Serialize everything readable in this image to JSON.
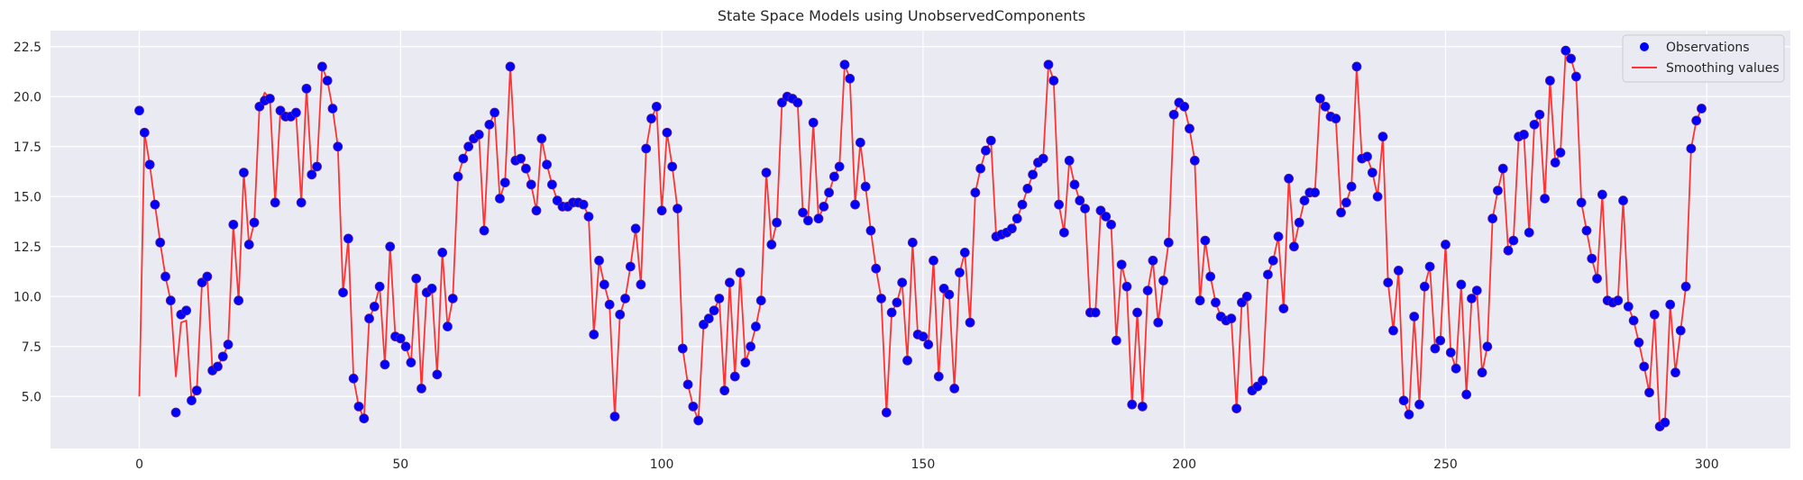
{
  "chart_data": {
    "type": "scatter",
    "title": "State Space Models using UnobservedComponents",
    "xlabel": "",
    "ylabel": "",
    "xlim": [
      -17,
      316
    ],
    "ylim": [
      2.4,
      23.3
    ],
    "xticks": [
      0,
      50,
      100,
      150,
      200,
      250,
      300
    ],
    "xtick_labels": [
      "0",
      "50",
      "100",
      "150",
      "200",
      "250",
      "300"
    ],
    "yticks": [
      5.0,
      7.5,
      10.0,
      12.5,
      15.0,
      17.5,
      20.0,
      22.5
    ],
    "ytick_labels": [
      "5.0",
      "7.5",
      "10.0",
      "12.5",
      "15.0",
      "17.5",
      "20.0",
      "22.5"
    ],
    "grid": true,
    "legend_position": "top-right",
    "colors": {
      "background": "#EAEAF2",
      "grid": "#FFFFFF",
      "observations": "#0000FF",
      "observations_edge": "#5A1E8C",
      "smoothing": "#FF3333",
      "text": "#262626"
    },
    "legend": [
      {
        "label": "Observations",
        "marker": "dot",
        "color": "#0000FF"
      },
      {
        "label": "Smoothing values",
        "marker": "line",
        "color": "#FF3333"
      }
    ],
    "series": [
      {
        "name": "Observations",
        "kind": "scatter",
        "x_start": 0,
        "values": [
          19.3,
          18.2,
          16.6,
          14.6,
          12.7,
          11.0,
          9.8,
          4.2,
          9.1,
          9.3,
          4.8,
          5.3,
          10.7,
          11.0,
          6.3,
          6.5,
          7.0,
          7.6,
          13.6,
          9.8,
          16.2,
          12.6,
          13.7,
          19.5,
          19.8,
          19.9,
          14.7,
          19.3,
          19.0,
          19.0,
          19.2,
          14.7,
          20.4,
          16.1,
          16.5,
          21.5,
          20.8,
          19.4,
          17.5,
          10.2,
          12.9,
          5.9,
          4.5,
          3.9,
          8.9,
          9.5,
          10.5,
          6.6,
          12.5,
          8.0,
          7.9,
          7.5,
          6.7,
          10.9,
          5.4,
          10.2,
          10.4,
          6.1,
          12.2,
          8.5,
          9.9,
          16.0,
          16.9,
          17.5,
          17.9,
          18.1,
          13.3,
          18.6,
          19.2,
          14.9,
          15.7,
          21.5,
          16.8,
          16.9,
          16.4,
          15.6,
          14.3,
          17.9,
          16.6,
          15.6,
          14.8,
          14.5,
          14.5,
          14.7,
          14.7,
          14.6,
          14.0,
          8.1,
          11.8,
          10.6,
          9.6,
          4.0,
          9.1,
          9.9,
          11.5,
          13.4,
          10.6,
          17.4,
          18.9,
          19.5,
          14.3,
          18.2,
          16.5,
          14.4,
          7.4,
          5.6,
          4.5,
          3.8,
          8.6,
          8.9,
          9.3,
          9.9,
          5.3,
          10.7,
          6.0,
          11.2,
          6.7,
          7.5,
          8.5,
          9.8,
          16.2,
          12.6,
          13.7,
          19.7,
          20.0,
          19.9,
          19.7,
          14.2,
          13.8,
          18.7,
          13.9,
          14.5,
          15.2,
          16.0,
          16.5,
          21.6,
          20.9,
          14.6,
          17.7,
          15.5,
          13.3,
          11.4,
          9.9,
          4.2,
          9.2,
          9.7,
          10.7,
          6.8,
          12.7,
          8.1,
          8.0,
          7.6,
          11.8,
          6.0,
          10.4,
          10.1,
          5.4,
          11.2,
          12.2,
          8.7,
          15.2,
          16.4,
          17.3,
          17.8,
          13.0,
          13.1,
          13.2,
          13.4,
          13.9,
          14.6,
          15.4,
          16.1,
          16.7,
          16.9,
          21.6,
          20.8,
          14.6,
          13.2,
          16.8,
          15.6,
          14.8,
          14.4,
          9.2,
          9.2,
          14.3,
          14.0,
          13.6,
          7.8,
          11.6,
          10.5,
          4.6,
          9.2,
          4.5,
          10.3,
          11.8,
          8.7,
          10.8,
          12.7,
          19.1,
          19.7,
          19.5,
          18.4,
          16.8,
          9.8,
          12.8,
          11.0,
          9.7,
          9.0,
          8.8,
          8.9,
          4.4,
          9.7,
          10.0,
          5.3,
          5.5,
          5.8,
          11.1,
          11.8,
          13.0,
          9.4,
          15.9,
          12.5,
          13.7,
          14.8,
          15.2,
          15.2,
          19.9,
          19.5,
          19.0,
          18.9,
          14.2,
          14.7,
          15.5,
          21.5,
          16.9,
          17.0,
          16.2,
          15.0,
          18.0,
          10.7,
          8.3,
          11.3,
          4.8,
          4.1,
          9.0,
          4.6,
          10.5,
          11.5,
          7.4,
          7.8,
          12.6,
          7.2,
          6.4,
          10.6,
          5.1,
          9.9,
          10.3,
          6.2,
          7.5,
          13.9,
          15.3,
          16.4,
          12.3,
          12.8,
          18.0,
          18.1,
          13.2,
          18.6,
          19.1,
          14.9,
          20.8,
          16.7,
          17.2,
          22.3,
          21.9,
          21.0,
          14.7,
          13.3,
          11.9,
          10.9,
          15.1,
          9.8,
          9.7,
          9.8,
          14.8,
          9.5,
          8.8,
          7.7,
          6.5,
          5.2,
          9.1,
          3.5,
          3.7,
          9.6,
          6.2,
          8.3,
          10.5,
          17.4,
          18.8,
          19.4
        ]
      },
      {
        "name": "Smoothing values",
        "kind": "line",
        "x_start": 0,
        "overrides": [
          {
            "x": 0,
            "y": 5.0
          },
          {
            "x": 7,
            "y": 6.0
          },
          {
            "x": 8,
            "y": 8.7
          },
          {
            "x": 9,
            "y": 8.8
          },
          {
            "x": 24,
            "y": 20.2
          }
        ]
      }
    ]
  }
}
